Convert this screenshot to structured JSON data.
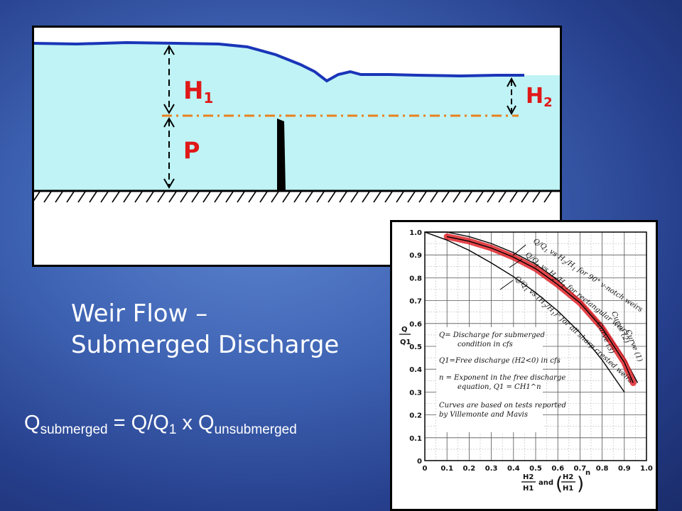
{
  "slide": {
    "title_line1": "Weir Flow –",
    "title_line2": "Submerged Discharge",
    "formula": {
      "q": "Q",
      "sub_submerged": "submerged",
      "middle": " = Q/Q",
      "sub_1": "1",
      "times": " x  Q",
      "sub_unsubmerged": "unsubmerged"
    }
  },
  "weir_diagram": {
    "label_h1_main": "H",
    "label_h1_sub": "1",
    "label_h2_main": "H",
    "label_h2_sub": "2",
    "label_p": "P",
    "colors": {
      "water": "#bff3f5",
      "surface": "#1a35b8",
      "labels": "#e01818",
      "datum": "#e8801e"
    }
  },
  "chart_data": {
    "type": "line",
    "x_ticks": [
      "0",
      "0.1",
      "0.2",
      "0.3",
      "0.4",
      "0.5",
      "0.6",
      "0.7",
      "0.8",
      "0.9",
      "1.0"
    ],
    "y_ticks": [
      "0",
      "0.1",
      "0.2",
      "0.3",
      "0.4",
      "0.5",
      "0.6",
      "0.7",
      "0.8",
      "0.9",
      "1.0"
    ],
    "xlim": [
      0,
      1.0
    ],
    "ylim": [
      0,
      1.0
    ],
    "grid": true,
    "ylabel_top": "Q",
    "ylabel_bottom": "Q1",
    "xlabel": {
      "frac1_num": "H2",
      "frac1_den": "H1",
      "and": "and",
      "frac2_num": "H2",
      "frac2_den": "H1",
      "exp": "n"
    },
    "series": [
      {
        "name": "Curve (1)",
        "annotation": "Q/Q1 vs H2/H1 for 90° v-notch weirs",
        "x": [
          0.0,
          0.1,
          0.2,
          0.3,
          0.4,
          0.5,
          0.6,
          0.7,
          0.8,
          0.9,
          0.96
        ],
        "y": [
          1.0,
          1.0,
          0.98,
          0.95,
          0.91,
          0.86,
          0.79,
          0.7,
          0.59,
          0.45,
          0.34
        ]
      },
      {
        "name": "Curve (2)",
        "annotation": "Q/Q1 vs H2/H1 for rectangular weirs",
        "highlight": "#e0242a",
        "x": [
          0.1,
          0.2,
          0.3,
          0.4,
          0.5,
          0.6,
          0.7,
          0.8,
          0.9,
          0.94
        ],
        "y": [
          0.98,
          0.96,
          0.93,
          0.89,
          0.84,
          0.77,
          0.69,
          0.58,
          0.43,
          0.34
        ]
      },
      {
        "name": "Curve (3)",
        "annotation": "Q/Q1 vs (H2/H1)^n for all sharp crested weirs",
        "x": [
          0.0,
          0.1,
          0.2,
          0.3,
          0.4,
          0.5,
          0.6,
          0.7,
          0.8,
          0.9
        ],
        "y": [
          1.0,
          0.965,
          0.92,
          0.865,
          0.805,
          0.735,
          0.655,
          0.56,
          0.44,
          0.3
        ]
      }
    ],
    "notes": [
      "Q= Discharge for submerged",
      "condition in cfs",
      "Q1=Free discharge (H2<0) in cfs",
      "n = Exponent in the free discharge",
      "equation, Q1 = CH1^n",
      "Curves are based on tests reported",
      "by Villemonte and Mavis"
    ]
  }
}
